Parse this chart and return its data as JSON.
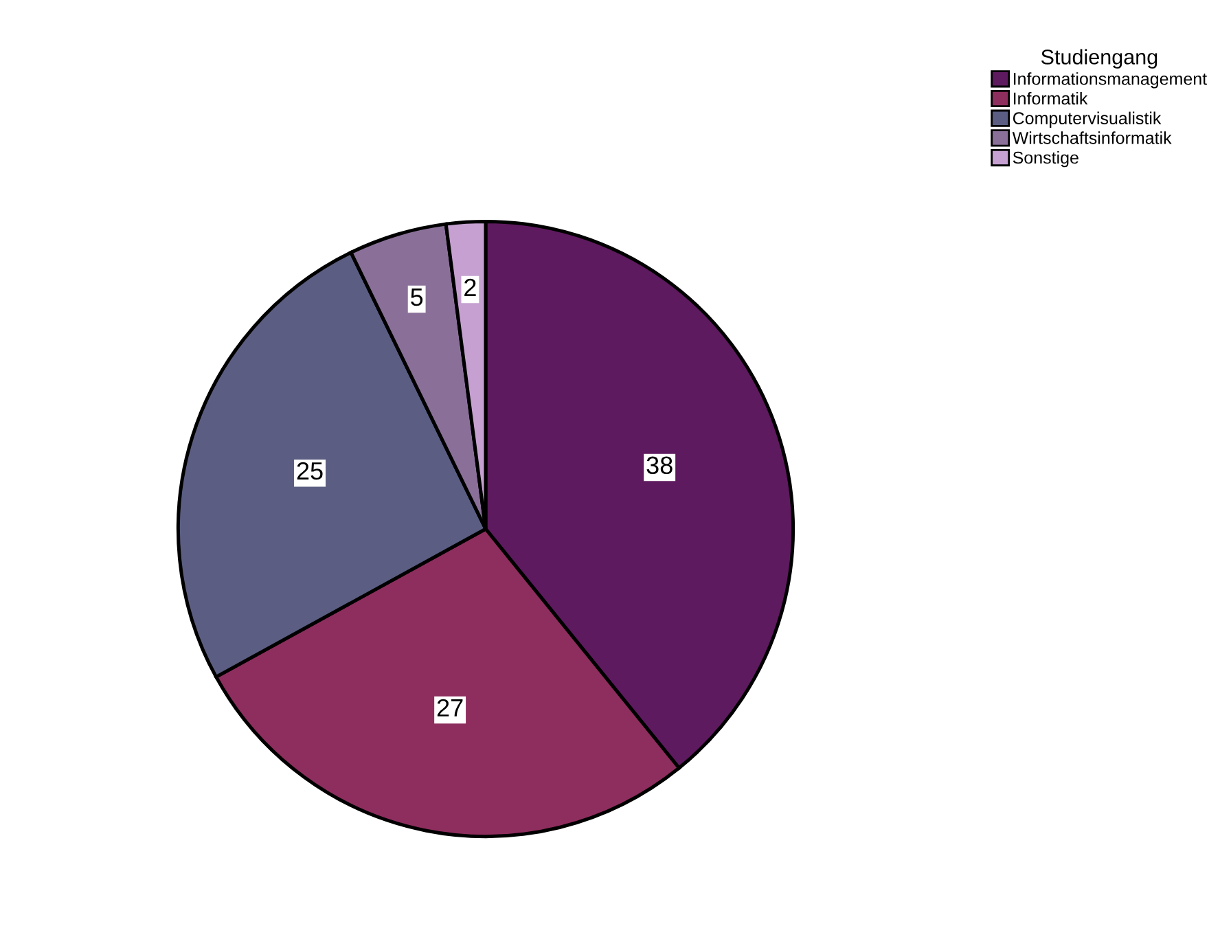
{
  "chart_data": {
    "type": "pie",
    "legend_title": "Studiengang",
    "categories": [
      "Informationsmanagement",
      "Informatik",
      "Computervisualistik",
      "Wirtschaftsinformatik",
      "Sonstige"
    ],
    "values": [
      38,
      27,
      25,
      5,
      2
    ],
    "colors": [
      "#5e1a5e",
      "#8e2e5e",
      "#5b5e82",
      "#8a7099",
      "#c5a0d0"
    ],
    "data_labels": true,
    "legend": "top right"
  }
}
